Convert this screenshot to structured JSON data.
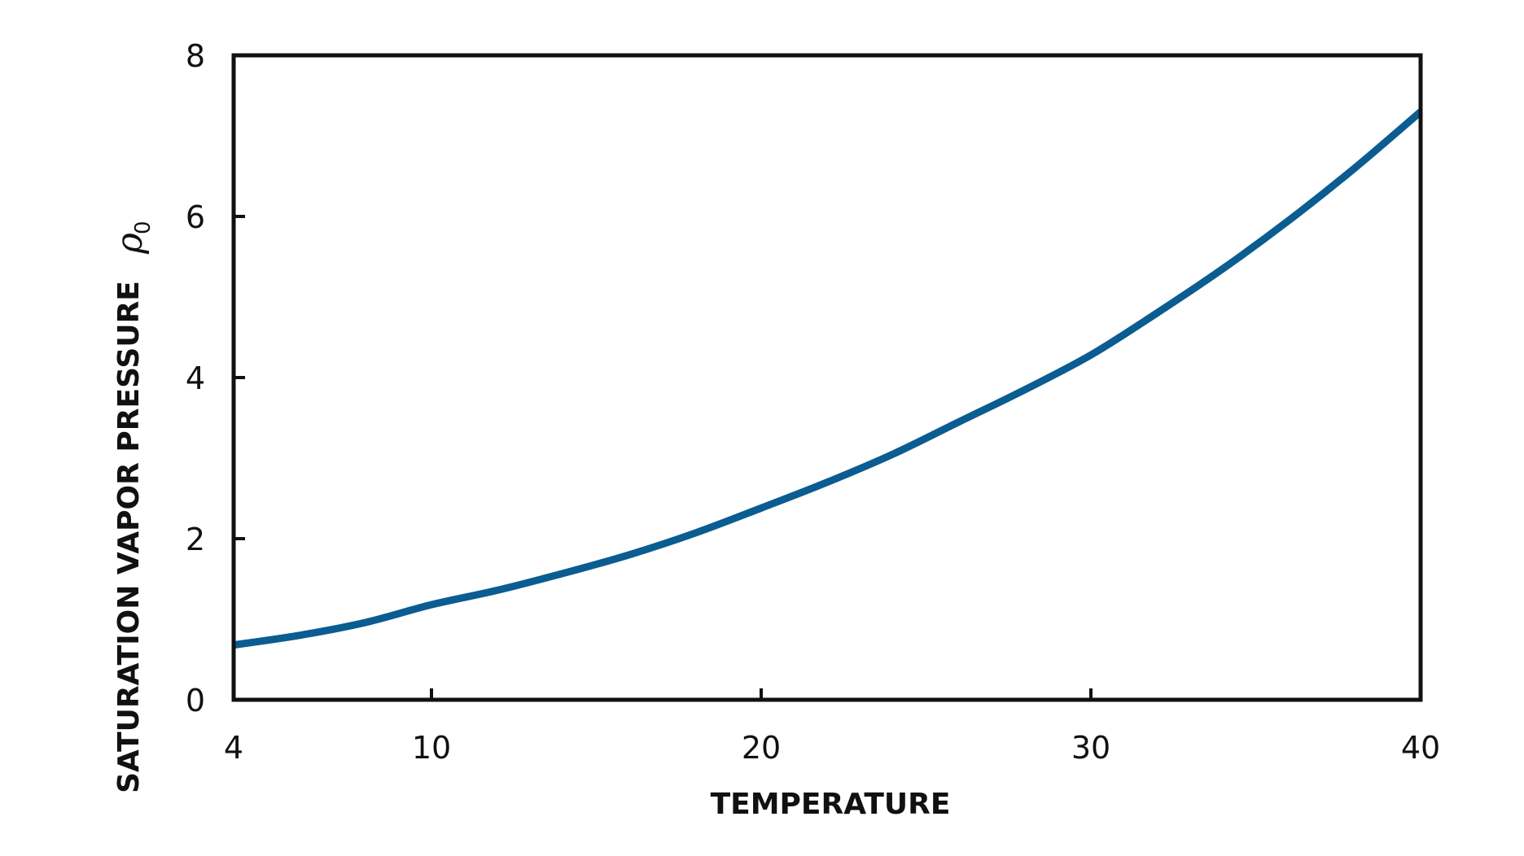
{
  "chart_data": {
    "type": "line",
    "xlabel": "TEMPERATURE",
    "ylabel": "SATURATION VAPOR PRESSURE",
    "ylabel_symbol": "ρ",
    "ylabel_symbol_subscript": "0",
    "xlim": [
      4,
      40
    ],
    "ylim": [
      0,
      8
    ],
    "xticks": [
      4,
      10,
      20,
      30,
      40
    ],
    "yticks": [
      0,
      2,
      4,
      6,
      8
    ],
    "grid": false,
    "line_color": "#0b5c91",
    "series": [
      {
        "x": [
          4,
          6,
          8,
          10,
          12,
          14,
          16,
          18,
          20,
          22,
          24,
          26,
          28,
          30,
          32,
          34,
          36,
          38,
          40
        ],
        "values": [
          0.68,
          0.8,
          0.96,
          1.18,
          1.36,
          1.57,
          1.8,
          2.07,
          2.38,
          2.7,
          3.05,
          3.45,
          3.85,
          4.28,
          4.8,
          5.35,
          5.95,
          6.6,
          7.3
        ]
      }
    ]
  }
}
